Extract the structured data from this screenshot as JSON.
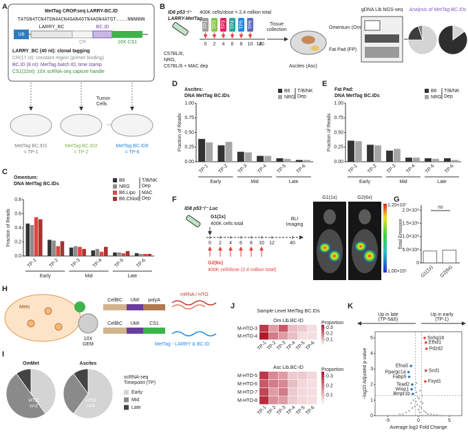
{
  "panel_letters": [
    "A",
    "B",
    "C",
    "D",
    "E",
    "F",
    "G",
    "H",
    "I",
    "J",
    "K"
  ],
  "construct": {
    "title": "MetTag CROP.seq LARRY-BC.ID",
    "sequence": "TATGN4TCN4TGN4ACN4GAN4GTN4AGN4ATGT....NNNNNN",
    "u6": "U6",
    "larry": "LARRY_BC",
    "bcid": "BC.ID",
    "cr": "CR",
    "cs1": "10X CS1",
    "notes": [
      "LARRY_BC (40 nt): clonal tagging",
      "CR(17 nt): constant region (primer binding)",
      "BC.ID (8 nt): MetTag batch ID; time stamp",
      "CS1(22nt): 10X scRNA-seq capture handle"
    ],
    "tumor": [
      "Tumor",
      "Cells"
    ],
    "ids": [
      [
        "MetTag BC.ID1",
        "= TP-1"
      ],
      [
        "MetTag BC.ID2",
        "= TP-2"
      ],
      [
        "MetTag BC.ID6",
        "= TP-6"
      ]
    ]
  },
  "schematic_b": {
    "line": [
      "ID8 p53⁻/⁻",
      "LARRY-MetTag"
    ],
    "dose": "400K cells/dose = 2.4 million total",
    "tubes": [
      "TP1",
      "TP2",
      "TP3",
      "TP4",
      "TP5",
      "TP6"
    ],
    "days": [
      "0",
      "2",
      "4",
      "6",
      "8",
      "10",
      "12",
      "40"
    ],
    "hosts": [
      "C57BL/6,",
      "NRG,",
      "C57BL/6 + MAC dep"
    ],
    "collection": [
      "Tissue",
      "collection"
    ],
    "omentum": "Omentum (Om)",
    "fatpad": "Fat Pad (FP)",
    "ascites": "Ascites (Asc)",
    "seq": "gDNA Lib NGS-seq",
    "analysis": "Analysis of MetTag BC.IDs"
  },
  "schematic_f": {
    "line": "ID8 p53⁻/⁻ Luc",
    "g1": "G1(1x)",
    "g1_note": "400K cells total",
    "g2": "G2(6x)",
    "g2_note": "400K cell/dose (2.4 million total)",
    "days": [
      "0",
      "2",
      "4",
      "6",
      "8",
      "10",
      "12",
      "40"
    ],
    "imaging": [
      "BLI",
      "Imaging"
    ],
    "images": [
      "G1(1x)",
      "G2(6x)"
    ],
    "scale": [
      "1.20×10⁷",
      "1.00×10⁵"
    ]
  },
  "schematic_h": {
    "mets": "Mets",
    "gem": [
      "10X",
      "GEM"
    ],
    "row1": [
      "CellBC",
      "UMI",
      "polyA"
    ],
    "row1_target": "mRNA / HTO",
    "row2": [
      "CellBC",
      "UMI",
      "CS1"
    ],
    "row2_target": "MetTag - LARRY & BC.ID"
  },
  "chart_data": [
    {
      "type": "pie",
      "values": [
        75,
        20,
        5
      ],
      "colors": [
        "#d4d4d4",
        "#3c3c3c",
        "#8a8a8a"
      ]
    },
    {
      "type": "pie",
      "values": [
        15,
        85
      ],
      "colors": [
        "#d4d4d4",
        "#2e2e2e"
      ]
    },
    {
      "type": "bar",
      "title": [
        "Omentum:",
        "DNA MetTag BC.IDs"
      ],
      "ylabel": "Fraction of Reads",
      "categories": [
        "TP-1",
        "TP-2",
        "TP-3",
        "TP-4",
        "TP-5",
        "TP-6"
      ],
      "groups": [
        "Early",
        "Early",
        "Mid",
        "Mid",
        "Late",
        "Late"
      ],
      "series": [
        {
          "name": "B6",
          "color": "#333333",
          "values": [
            0.46,
            0.23,
            0.12,
            0.08,
            0.05,
            0.04
          ]
        },
        {
          "name": "NRG",
          "color": "#8c8c8c",
          "values": [
            0.44,
            0.22,
            0.14,
            0.1,
            0.05,
            0.03
          ]
        },
        {
          "name": "B6.Lipo",
          "color": "#e0443f",
          "values": [
            0.55,
            0.14,
            0.13,
            0.06,
            0.04,
            0.03
          ]
        },
        {
          "name": "B6.Chlod",
          "color": "#a83232",
          "values": [
            0.52,
            0.21,
            0.1,
            0.13,
            0.07,
            0.03
          ]
        }
      ],
      "legend_notes": [
        [
          "T/B/NK",
          "Dep"
        ],
        [
          "MAC",
          "Dep"
        ]
      ],
      "ylim": [
        0,
        0.8
      ],
      "yticks": [
        {
          "value": 0,
          "label": "0.0"
        },
        0.2,
        0.4,
        0.6,
        0.8
      ]
    },
    {
      "type": "bar",
      "title": [
        "Ascites:",
        "DNA MetTag BC.IDs"
      ],
      "ylabel": "Fraction of Reads",
      "categories": [
        "TP-1",
        "TP-2",
        "TP-3",
        "TP-4",
        "TP-5",
        "TP-6"
      ],
      "groups": [
        "Early",
        "Early",
        "Mid",
        "Mid",
        "Late",
        "Late"
      ],
      "series": [
        {
          "name": "B6",
          "color": "#333333",
          "values": [
            0.39,
            0.28,
            0.17,
            0.1,
            0.06,
            0.03
          ]
        },
        {
          "name": "NRG",
          "color": "#a6a6a6",
          "values": [
            0.33,
            0.34,
            0.16,
            0.1,
            0.05,
            0.03
          ]
        }
      ],
      "legend_notes": [
        [
          "T/B/NK",
          "Dep"
        ]
      ],
      "ylim": [
        0,
        1.0
      ],
      "yticks": [
        {
          "value": 0,
          "label": "0.00"
        },
        0.25,
        {
          "value": 0.5,
          "label": "0.50"
        },
        0.75,
        {
          "value": 1,
          "label": "1.00"
        }
      ]
    },
    {
      "type": "bar",
      "title": [
        "Fat Pad:",
        "DNA MetTag BC.IDs"
      ],
      "ylabel": "Fraction of Reads",
      "categories": [
        "TP-1",
        "TP-2",
        "TP-3",
        "TP-4",
        "TP-5",
        "TP-6"
      ],
      "groups": [
        "Early",
        "Early",
        "Mid",
        "Mid",
        "Late",
        "Late"
      ],
      "series": [
        {
          "name": "B6",
          "color": "#333333",
          "values": [
            0.36,
            0.29,
            0.19,
            0.07,
            0.06,
            0.06
          ]
        },
        {
          "name": "NRG",
          "color": "#a6a6a6",
          "values": [
            0.35,
            0.28,
            0.22,
            0.07,
            0.05,
            0.03
          ]
        }
      ],
      "legend_notes": [
        [
          "T/B/NK",
          "Dep"
        ]
      ],
      "ylim": [
        0,
        1.0
      ],
      "yticks": [
        {
          "value": 0,
          "label": "0.00"
        },
        0.25,
        {
          "value": 0.5,
          "label": "0.50"
        },
        0.75,
        {
          "value": 1,
          "label": "1.00"
        }
      ]
    },
    {
      "type": "bar",
      "ylabel": "Total Emission",
      "categories": [
        "G1(1x)",
        "G2(6x)"
      ],
      "series": [
        {
          "color": "#ffffff",
          "values": [
            450000000,
            490000000
          ]
        }
      ],
      "edge_color": "#333333",
      "annotation": "ns",
      "ylim": [
        0,
        2200000000
      ],
      "yticks": [
        0,
        {
          "value": 500000000,
          "label": "5.0×10⁸"
        },
        {
          "value": 1000000000,
          "label": "1.0×10⁹"
        },
        {
          "value": 1500000000,
          "label": "1.5×10⁹"
        },
        {
          "value": 2000000000,
          "label": "2.0×10⁹"
        }
      ]
    },
    {
      "type": "pie",
      "title": "OmMet",
      "center_label": [
        "HTO",
        "n=2"
      ],
      "categories": [
        "Early",
        "Mid",
        "Late"
      ],
      "values": [
        40,
        50,
        10
      ],
      "colors": [
        "#d4d4d4",
        "#8a8a8a",
        "#444444"
      ],
      "legend_title": [
        "scRNA-seq",
        "Timepoint (TP)"
      ]
    },
    {
      "type": "pie",
      "title": "Ascites",
      "center_label": [
        "HTO",
        "n=4"
      ],
      "values": [
        60,
        30,
        10
      ],
      "colors": [
        "#d4d4d4",
        "#8a8a8a",
        "#444444"
      ]
    },
    {
      "type": "heatmap",
      "title": "Sample Level MetTag BC.IDs",
      "subtitle": "Om Lib.BC-ID",
      "rows": [
        "M-HTO-3",
        "M-HTO-4"
      ],
      "columns": [
        "TP-1",
        "TP-2",
        "TP-3",
        "TP-4",
        "TP-5",
        "TP-6"
      ],
      "values": [
        [
          0.3,
          0.15,
          0.25,
          0.1,
          0.08,
          0.05
        ],
        [
          0.35,
          0.2,
          0.15,
          0.1,
          0.05,
          0.05
        ]
      ],
      "vlim": [
        0,
        0.35
      ],
      "colorbar_label": "Proportion",
      "colorbar_ticks": [
        0.1,
        0.2,
        0.3
      ],
      "low_color": "#ffffff",
      "high_color": "#b2182b"
    },
    {
      "type": "heatmap",
      "subtitle": "Asc Lib.BC-ID",
      "rows": [
        "M-HTO-5",
        "M-HTO-6",
        "M-HTO-7",
        "M-HTO-8"
      ],
      "columns": [
        "TP-1",
        "TP-2",
        "TP-3",
        "TP-4",
        "TP-5",
        "TP-6"
      ],
      "values": [
        [
          0.3,
          0.18,
          0.15,
          0.08,
          0.08,
          0.06
        ],
        [
          0.25,
          0.2,
          0.18,
          0.1,
          0.06,
          0.05
        ],
        [
          0.28,
          0.15,
          0.2,
          0.08,
          0.06,
          0.05
        ],
        [
          0.32,
          0.17,
          0.15,
          0.08,
          0.06,
          0.05
        ]
      ],
      "vlim": [
        0,
        0.35
      ],
      "colorbar_label": "Proportion",
      "colorbar_ticks": [
        0.1,
        0.2,
        0.3
      ],
      "low_color": "#ffffff",
      "high_color": "#b2182b"
    },
    {
      "type": "scatter",
      "left_header": [
        "Up in late",
        "(TP-5&6)"
      ],
      "right_header": [
        "Up in early",
        "(TP-1)"
      ],
      "xlabel": "Average log2 Fold Change",
      "ylabel": "−log10 Adjusted p-value",
      "xlim": [
        -7,
        7
      ],
      "xticks": [
        -5,
        0,
        5
      ],
      "ylim": [
        0,
        5.4
      ],
      "yticks": [
        0,
        1,
        2,
        3,
        4,
        5
      ],
      "hlines": [
        1.3
      ],
      "vlines": [
        -0.5,
        0.5
      ],
      "x": [
        -3,
        -2.5,
        -2,
        -1.5,
        -1.2,
        -1,
        -0.8,
        -0.6,
        -0.4,
        -0.3,
        -0.2,
        -0.1,
        0,
        0.1,
        0.2,
        0.3,
        0.4,
        0.5,
        0.7,
        0.9,
        1.2,
        1.5,
        2,
        2.5,
        3,
        3.5,
        -4,
        -5,
        4,
        5,
        -0.5,
        0.6,
        -0.3,
        0.2,
        0.1
      ],
      "y": [
        0.1,
        0.1,
        0.2,
        0.3,
        0.8,
        0.5,
        1.0,
        0.6,
        0.9,
        1.5,
        0.7,
        1.2,
        0.4,
        1.1,
        0.6,
        1.6,
        0.9,
        0.5,
        0.8,
        0.3,
        0.2,
        0.1,
        0.1,
        0.05,
        0.05,
        0,
        0,
        0,
        0,
        0,
        1.8,
        1.3,
        2.1,
        0.2,
        0
      ],
      "color": "#a0a0a0",
      "up_color": "#e0443f",
      "down_color": "#3a7ab8",
      "points": [
        {
          "label": "Snhg18",
          "x": 1.0,
          "y": 5.0
        },
        {
          "label": "Efhd1",
          "x": 1.2,
          "y": 4.7
        },
        {
          "label": "Pdzd2",
          "x": 1.3,
          "y": 4.3
        },
        {
          "label": "Scd1",
          "x": 1.2,
          "y": 2.9
        },
        {
          "label": "Fxyd1",
          "x": 1.1,
          "y": 2.2
        },
        {
          "label": "Efna5",
          "x": -1.2,
          "y": 3.2
        },
        {
          "label": "Ppargc1a",
          "x": -1.6,
          "y": 2.8
        },
        {
          "label": "Fabp5",
          "x": -1.5,
          "y": 2.5
        },
        {
          "label": "Tead2",
          "x": -1.0,
          "y": 2.0
        },
        {
          "label": "Wisp1",
          "x": -1.1,
          "y": 1.7
        },
        {
          "label": "Bmpr1b",
          "x": -0.9,
          "y": 1.4
        }
      ]
    }
  ]
}
